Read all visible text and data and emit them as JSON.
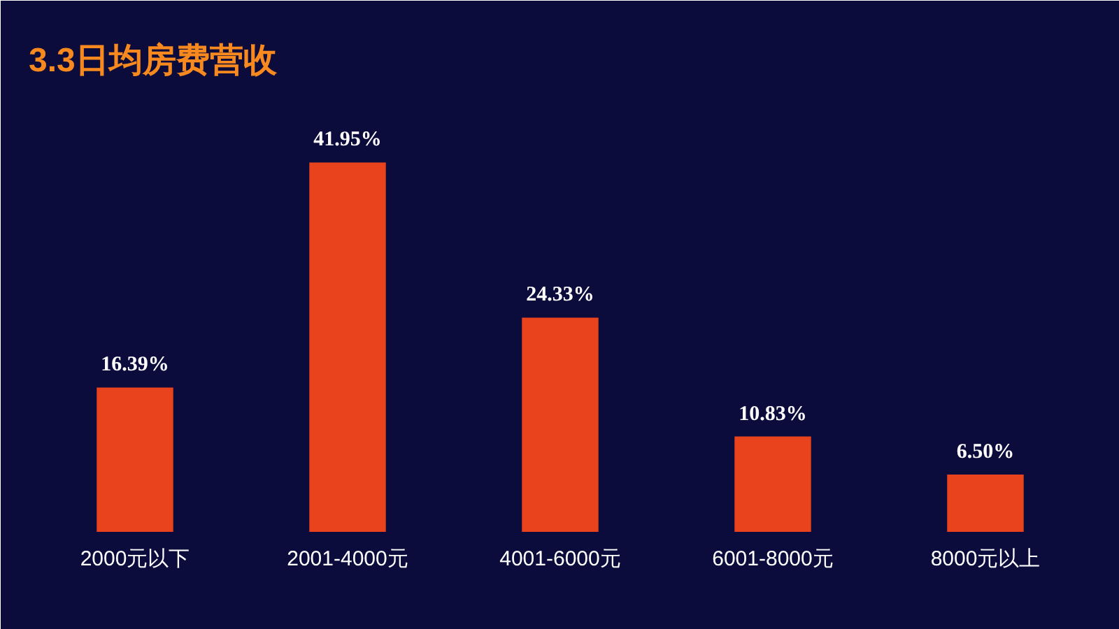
{
  "chart_data": {
    "type": "bar",
    "title": "3.3日均房费营收",
    "categories": [
      "2000元以下",
      "2001-4000元",
      "4001-6000元",
      "6001-8000元",
      "8000元以上"
    ],
    "values": [
      16.39,
      41.95,
      24.33,
      10.83,
      6.5
    ],
    "value_labels": [
      "16.39%",
      "41.95%",
      "24.33%",
      "10.83%",
      "6.50%"
    ],
    "color": "#e8431c",
    "grid": false
  }
}
